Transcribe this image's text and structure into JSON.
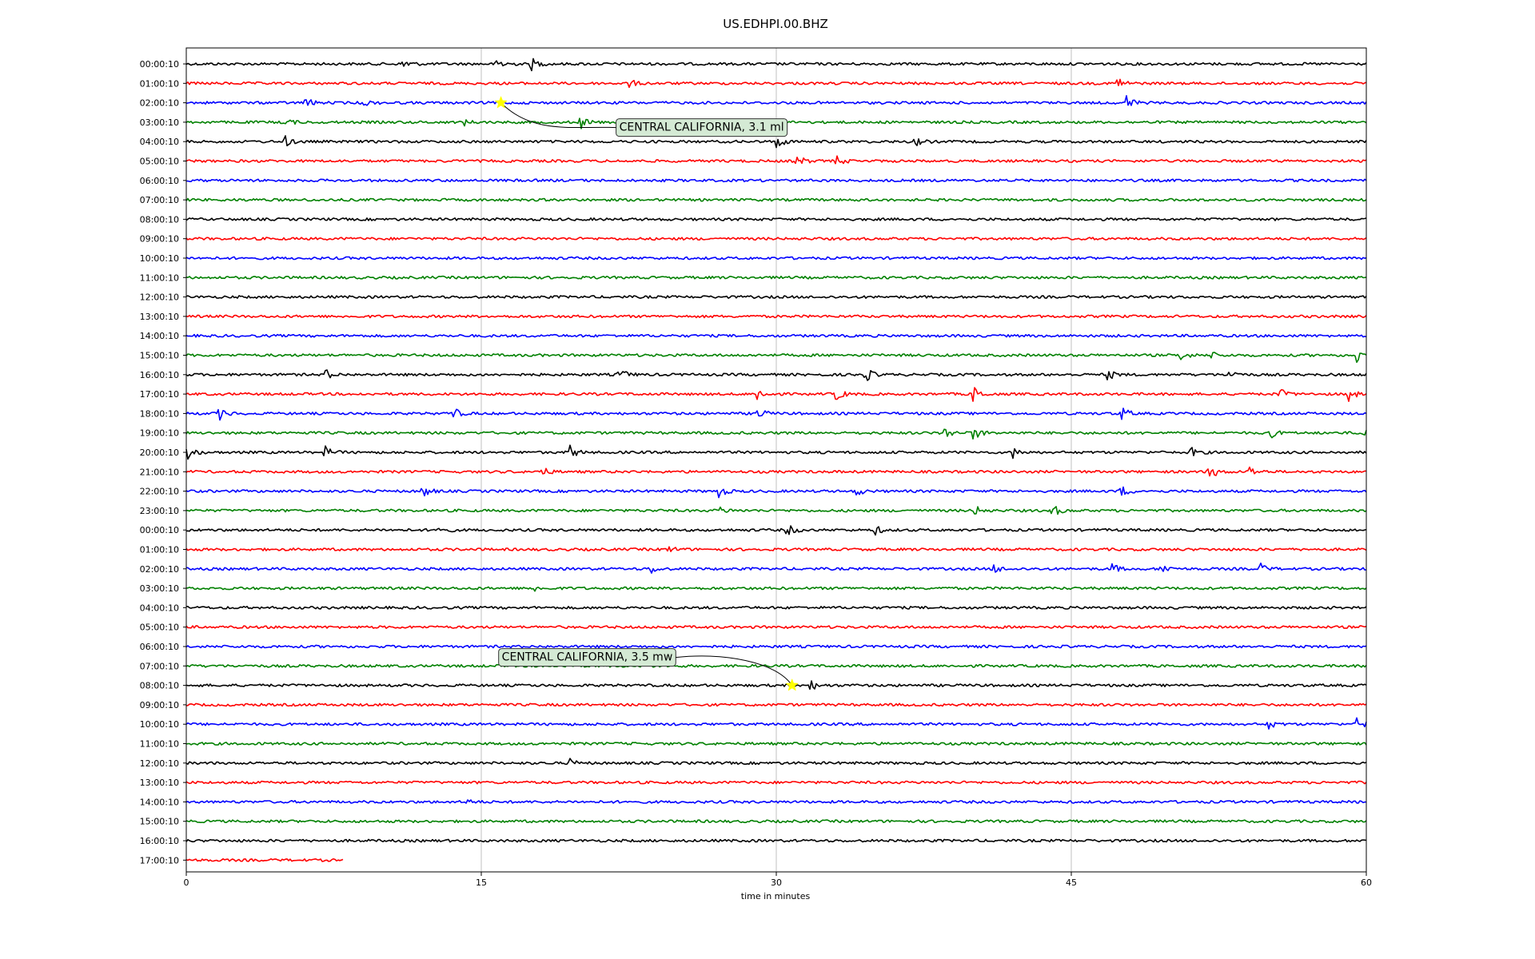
{
  "chart_data": {
    "type": "line",
    "title": "US.EDHPI.00.BHZ",
    "xlabel": "time in minutes",
    "ylabel": "",
    "xlim": [
      0,
      60
    ],
    "x_ticks": [
      0,
      15,
      30,
      45,
      60
    ],
    "grid": "vertical",
    "color_cycle": [
      "#000000",
      "#ff0000",
      "#0000ff",
      "#008000"
    ],
    "row_labels": [
      "00:00:10",
      "01:00:10",
      "02:00:10",
      "03:00:10",
      "04:00:10",
      "05:00:10",
      "06:00:10",
      "07:00:10",
      "08:00:10",
      "09:00:10",
      "10:00:10",
      "11:00:10",
      "12:00:10",
      "13:00:10",
      "14:00:10",
      "15:00:10",
      "16:00:10",
      "17:00:10",
      "18:00:10",
      "19:00:10",
      "20:00:10",
      "21:00:10",
      "22:00:10",
      "23:00:10",
      "00:00:10",
      "01:00:10",
      "02:00:10",
      "03:00:10",
      "04:00:10",
      "05:00:10",
      "06:00:10",
      "07:00:10",
      "08:00:10",
      "09:00:10",
      "10:00:10",
      "11:00:10",
      "12:00:10",
      "13:00:10",
      "14:00:10",
      "15:00:10",
      "16:00:10",
      "17:00:10"
    ],
    "last_row_end_minute": 8,
    "events": [
      {
        "label": "CENTRAL CALIFORNIA, 3.1 ml",
        "row": 2,
        "minute": 16.0,
        "marker_color": "#ffff00",
        "box_color": "#d4ead4"
      },
      {
        "label": "CENTRAL CALIFORNIA, 3.5 mw",
        "row": 32,
        "minute": 30.8,
        "marker_color": "#ffff00",
        "box_color": "#d4ead4"
      }
    ],
    "bursts": [
      {
        "row": 0,
        "minute": 15.8,
        "amp": 12
      },
      {
        "row": 0,
        "minute": 17.5,
        "amp": 9
      },
      {
        "row": 0,
        "minute": 11,
        "amp": 8
      },
      {
        "row": 1,
        "minute": 47.3,
        "amp": 9
      },
      {
        "row": 1,
        "minute": 22.5,
        "amp": 5
      },
      {
        "row": 2,
        "minute": 6,
        "amp": 8
      },
      {
        "row": 2,
        "minute": 47.8,
        "amp": 10
      },
      {
        "row": 2,
        "minute": 9,
        "amp": 4
      },
      {
        "row": 3,
        "minute": 20,
        "amp": 9
      },
      {
        "row": 3,
        "minute": 5,
        "amp": 6
      },
      {
        "row": 3,
        "minute": 14,
        "amp": 5
      },
      {
        "row": 4,
        "minute": 5,
        "amp": 7
      },
      {
        "row": 4,
        "minute": 30,
        "amp": 9
      },
      {
        "row": 4,
        "minute": 37,
        "amp": 6
      },
      {
        "row": 5,
        "minute": 31,
        "amp": 9
      },
      {
        "row": 5,
        "minute": 33,
        "amp": 7
      },
      {
        "row": 15,
        "minute": 50.5,
        "amp": 8
      },
      {
        "row": 15,
        "minute": 52,
        "amp": 6
      },
      {
        "row": 15,
        "minute": 59.5,
        "amp": 9
      },
      {
        "row": 16,
        "minute": 7,
        "amp": 8
      },
      {
        "row": 16,
        "minute": 22,
        "amp": 9
      },
      {
        "row": 16,
        "minute": 34.5,
        "amp": 10
      },
      {
        "row": 16,
        "minute": 46.8,
        "amp": 8
      },
      {
        "row": 16,
        "minute": 53,
        "amp": 7
      },
      {
        "row": 17,
        "minute": 29,
        "amp": 9
      },
      {
        "row": 17,
        "minute": 33,
        "amp": 10
      },
      {
        "row": 17,
        "minute": 40,
        "amp": 11
      },
      {
        "row": 17,
        "minute": 55.5,
        "amp": 9
      },
      {
        "row": 17,
        "minute": 59,
        "amp": 11
      },
      {
        "row": 18,
        "minute": 1.6,
        "amp": 10
      },
      {
        "row": 18,
        "minute": 13.5,
        "amp": 9
      },
      {
        "row": 18,
        "minute": 29,
        "amp": 9
      },
      {
        "row": 18,
        "minute": 47.5,
        "amp": 10
      },
      {
        "row": 19,
        "minute": 38.5,
        "amp": 9
      },
      {
        "row": 19,
        "minute": 40,
        "amp": 10
      },
      {
        "row": 19,
        "minute": 55,
        "amp": 9
      },
      {
        "row": 19,
        "minute": 59.8,
        "amp": 10
      },
      {
        "row": 20,
        "minute": 0,
        "amp": 11
      },
      {
        "row": 20,
        "minute": 7,
        "amp": 9
      },
      {
        "row": 20,
        "minute": 19.5,
        "amp": 9
      },
      {
        "row": 20,
        "minute": 42,
        "amp": 7
      },
      {
        "row": 20,
        "minute": 51,
        "amp": 8
      },
      {
        "row": 21,
        "minute": 18,
        "amp": 8
      },
      {
        "row": 21,
        "minute": 52,
        "amp": 11
      },
      {
        "row": 21,
        "minute": 54,
        "amp": 8
      },
      {
        "row": 22,
        "minute": 12,
        "amp": 9
      },
      {
        "row": 22,
        "minute": 27,
        "amp": 10
      },
      {
        "row": 22,
        "minute": 34,
        "amp": 7
      },
      {
        "row": 22,
        "minute": 47.5,
        "amp": 8
      },
      {
        "row": 23,
        "minute": 27,
        "amp": 7
      },
      {
        "row": 23,
        "minute": 40,
        "amp": 8
      },
      {
        "row": 23,
        "minute": 44,
        "amp": 9
      },
      {
        "row": 24,
        "minute": 12.8,
        "amp": 7
      },
      {
        "row": 24,
        "minute": 30.5,
        "amp": 10
      },
      {
        "row": 24,
        "minute": 35,
        "amp": 6
      },
      {
        "row": 25,
        "minute": 24.5,
        "amp": 4
      },
      {
        "row": 26,
        "minute": 23.5,
        "amp": 8
      },
      {
        "row": 26,
        "minute": 41,
        "amp": 7
      },
      {
        "row": 26,
        "minute": 47,
        "amp": 8
      },
      {
        "row": 26,
        "minute": 49.5,
        "amp": 9
      },
      {
        "row": 26,
        "minute": 54.5,
        "amp": 9
      },
      {
        "row": 27,
        "minute": 17.5,
        "amp": 6
      },
      {
        "row": 32,
        "minute": 31.7,
        "amp": 7
      },
      {
        "row": 34,
        "minute": 59.5,
        "amp": 12
      },
      {
        "row": 34,
        "minute": 55,
        "amp": 6
      },
      {
        "row": 36,
        "minute": 19.5,
        "amp": 5
      },
      {
        "row": 38,
        "minute": 14.2,
        "amp": 4
      }
    ]
  }
}
